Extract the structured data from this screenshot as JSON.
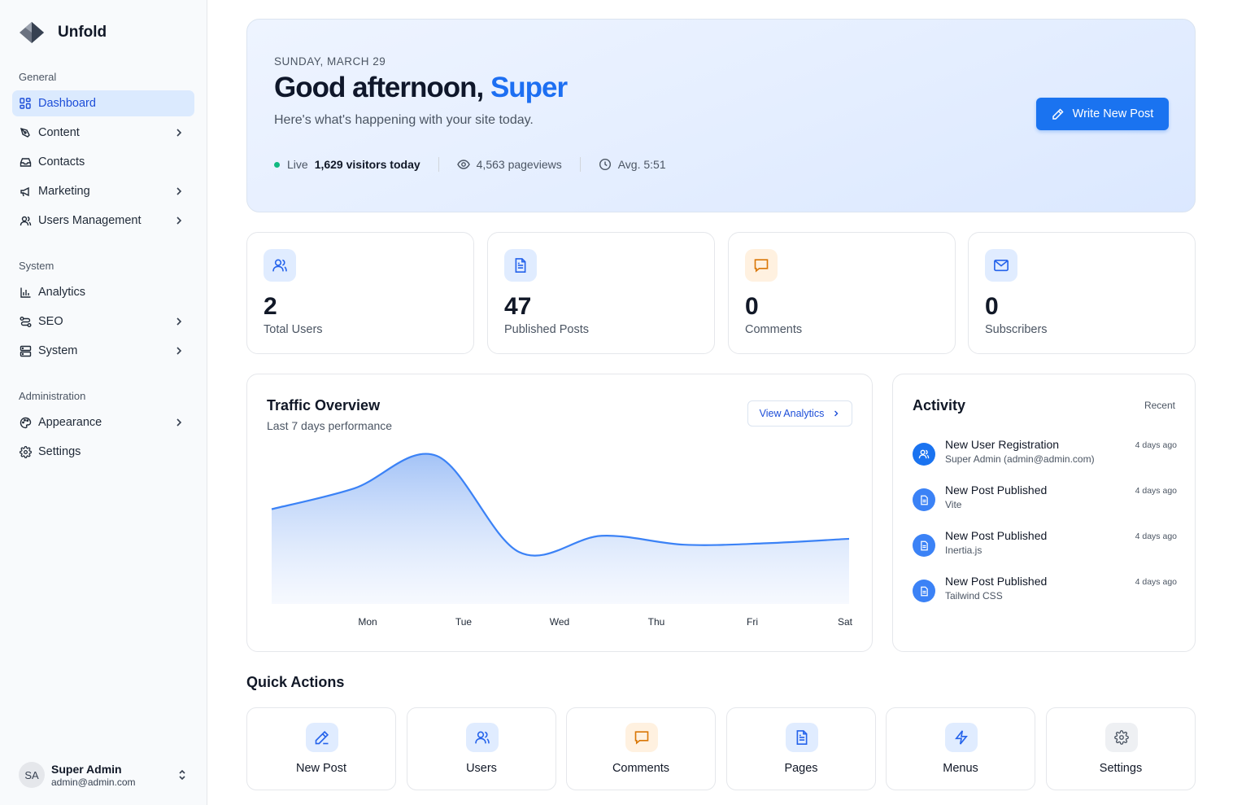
{
  "brand": {
    "name": "Unfold"
  },
  "sidebar": {
    "sections": [
      {
        "label": "General"
      },
      {
        "label": "System"
      },
      {
        "label": "Administration"
      }
    ],
    "items": [
      {
        "label": "Dashboard",
        "icon": "dashboard-grid-icon",
        "active": true
      },
      {
        "label": "Content",
        "icon": "pen-tool-icon",
        "has_children": true
      },
      {
        "label": "Contacts",
        "icon": "inbox-icon"
      },
      {
        "label": "Marketing",
        "icon": "megaphone-icon",
        "has_children": true
      },
      {
        "label": "Users Management",
        "icon": "users-icon",
        "has_children": true
      },
      {
        "label": "Analytics",
        "icon": "bar-chart-icon"
      },
      {
        "label": "SEO",
        "icon": "route-icon",
        "has_children": true
      },
      {
        "label": "System",
        "icon": "server-icon",
        "has_children": true
      },
      {
        "label": "Appearance",
        "icon": "palette-icon",
        "has_children": true
      },
      {
        "label": "Settings",
        "icon": "gear-icon"
      }
    ],
    "user": {
      "initials": "SA",
      "name": "Super Admin",
      "email": "admin@admin.com"
    }
  },
  "hero": {
    "date": "SUNDAY, MARCH 29",
    "greeting": "Good afternoon,",
    "name": "Super",
    "subtitle": "Here's what's happening with your site today.",
    "live_label": "Live",
    "visitors": "1,629 visitors today",
    "pageviews": "4,563 pageviews",
    "avg": "Avg. 5:51",
    "write_button": "Write New Post"
  },
  "stats": [
    {
      "value": "2",
      "label": "Total Users",
      "icon": "users-icon"
    },
    {
      "value": "47",
      "label": "Published Posts",
      "icon": "document-icon"
    },
    {
      "value": "0",
      "label": "Comments",
      "icon": "message-icon"
    },
    {
      "value": "0",
      "label": "Subscribers",
      "icon": "mail-icon"
    }
  ],
  "traffic": {
    "title": "Traffic Overview",
    "subtitle": "Last 7 days performance",
    "view_button": "View Analytics"
  },
  "chart_data": {
    "type": "area",
    "categories": [
      "Mon",
      "Tue",
      "Wed",
      "Thu",
      "Fri",
      "Sat"
    ],
    "points": [
      0.64,
      0.78,
      1.0,
      0.35,
      0.46,
      0.4,
      0.41,
      0.44
    ],
    "color": "#3b82f6",
    "grid": false,
    "xlabel": "",
    "ylabel": ""
  },
  "activity": {
    "title": "Activity",
    "recent_label": "Recent",
    "items": [
      {
        "title": "New User Registration",
        "desc": "Super Admin (admin@admin.com)",
        "time": "4 days ago",
        "icon": "users-icon"
      },
      {
        "title": "New Post Published",
        "desc": "Vite",
        "time": "4 days ago",
        "icon": "document-icon"
      },
      {
        "title": "New Post Published",
        "desc": "Inertia.js",
        "time": "4 days ago",
        "icon": "document-icon"
      },
      {
        "title": "New Post Published",
        "desc": "Tailwind CSS",
        "time": "4 days ago",
        "icon": "document-icon"
      }
    ]
  },
  "quick_actions": {
    "title": "Quick Actions",
    "items": [
      {
        "label": "New Post",
        "icon": "pencil-icon"
      },
      {
        "label": "Users",
        "icon": "users-icon"
      },
      {
        "label": "Comments",
        "icon": "message-icon"
      },
      {
        "label": "Pages",
        "icon": "document-icon"
      },
      {
        "label": "Menus",
        "icon": "lightning-icon"
      },
      {
        "label": "Settings",
        "icon": "gear-icon"
      }
    ]
  },
  "colors": {
    "accent": "#1a73f0",
    "live_dot": "#10b981",
    "orange": "#f59e0b"
  }
}
